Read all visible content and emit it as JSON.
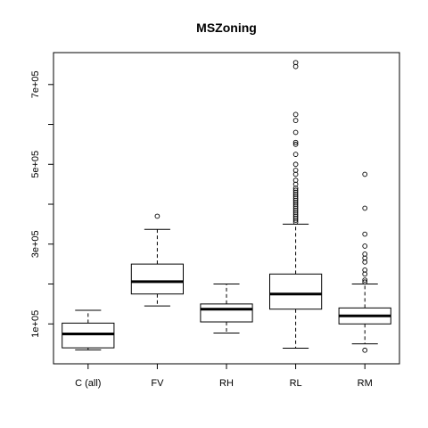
{
  "chart_data": {
    "type": "boxplot",
    "title": "MSZoning",
    "xlabel": "",
    "ylabel": "",
    "categories": [
      "C (all)",
      "FV",
      "RH",
      "RL",
      "RM"
    ],
    "ylim": [
      0,
      780000
    ],
    "yticks": [
      100000,
      300000,
      500000,
      700000
    ],
    "ytick_labels": [
      "1e+05",
      "3e+05",
      "5e+05",
      "7e+05"
    ],
    "grid": false,
    "boxes": [
      {
        "name": "C (all)",
        "whisker_low": 35000,
        "q1": 40000,
        "median": 75000,
        "q3": 102000,
        "whisker_high": 134000,
        "outliers": []
      },
      {
        "name": "FV",
        "whisker_low": 145000,
        "q1": 175000,
        "median": 206000,
        "q3": 250000,
        "whisker_high": 337000,
        "outliers": [
          370000
        ]
      },
      {
        "name": "RH",
        "whisker_low": 77000,
        "q1": 105000,
        "median": 137000,
        "q3": 150000,
        "whisker_high": 200000,
        "outliers": []
      },
      {
        "name": "RL",
        "whisker_low": 39000,
        "q1": 137000,
        "median": 175000,
        "q3": 225000,
        "whisker_high": 350000,
        "outliers": [
          355000,
          360000,
          365000,
          370000,
          375000,
          380000,
          385000,
          390000,
          395000,
          400000,
          405000,
          410000,
          415000,
          420000,
          425000,
          430000,
          435000,
          440000,
          450000,
          460000,
          475000,
          485000,
          500000,
          525000,
          550000,
          555000,
          580000,
          610000,
          625000,
          745000,
          755000
        ]
      },
      {
        "name": "RM",
        "whisker_low": 50000,
        "q1": 100000,
        "median": 120000,
        "q3": 140000,
        "whisker_high": 200000,
        "outliers": [
          34000,
          205000,
          210000,
          225000,
          235000,
          255000,
          265000,
          275000,
          295000,
          325000,
          390000,
          475000
        ]
      }
    ]
  }
}
